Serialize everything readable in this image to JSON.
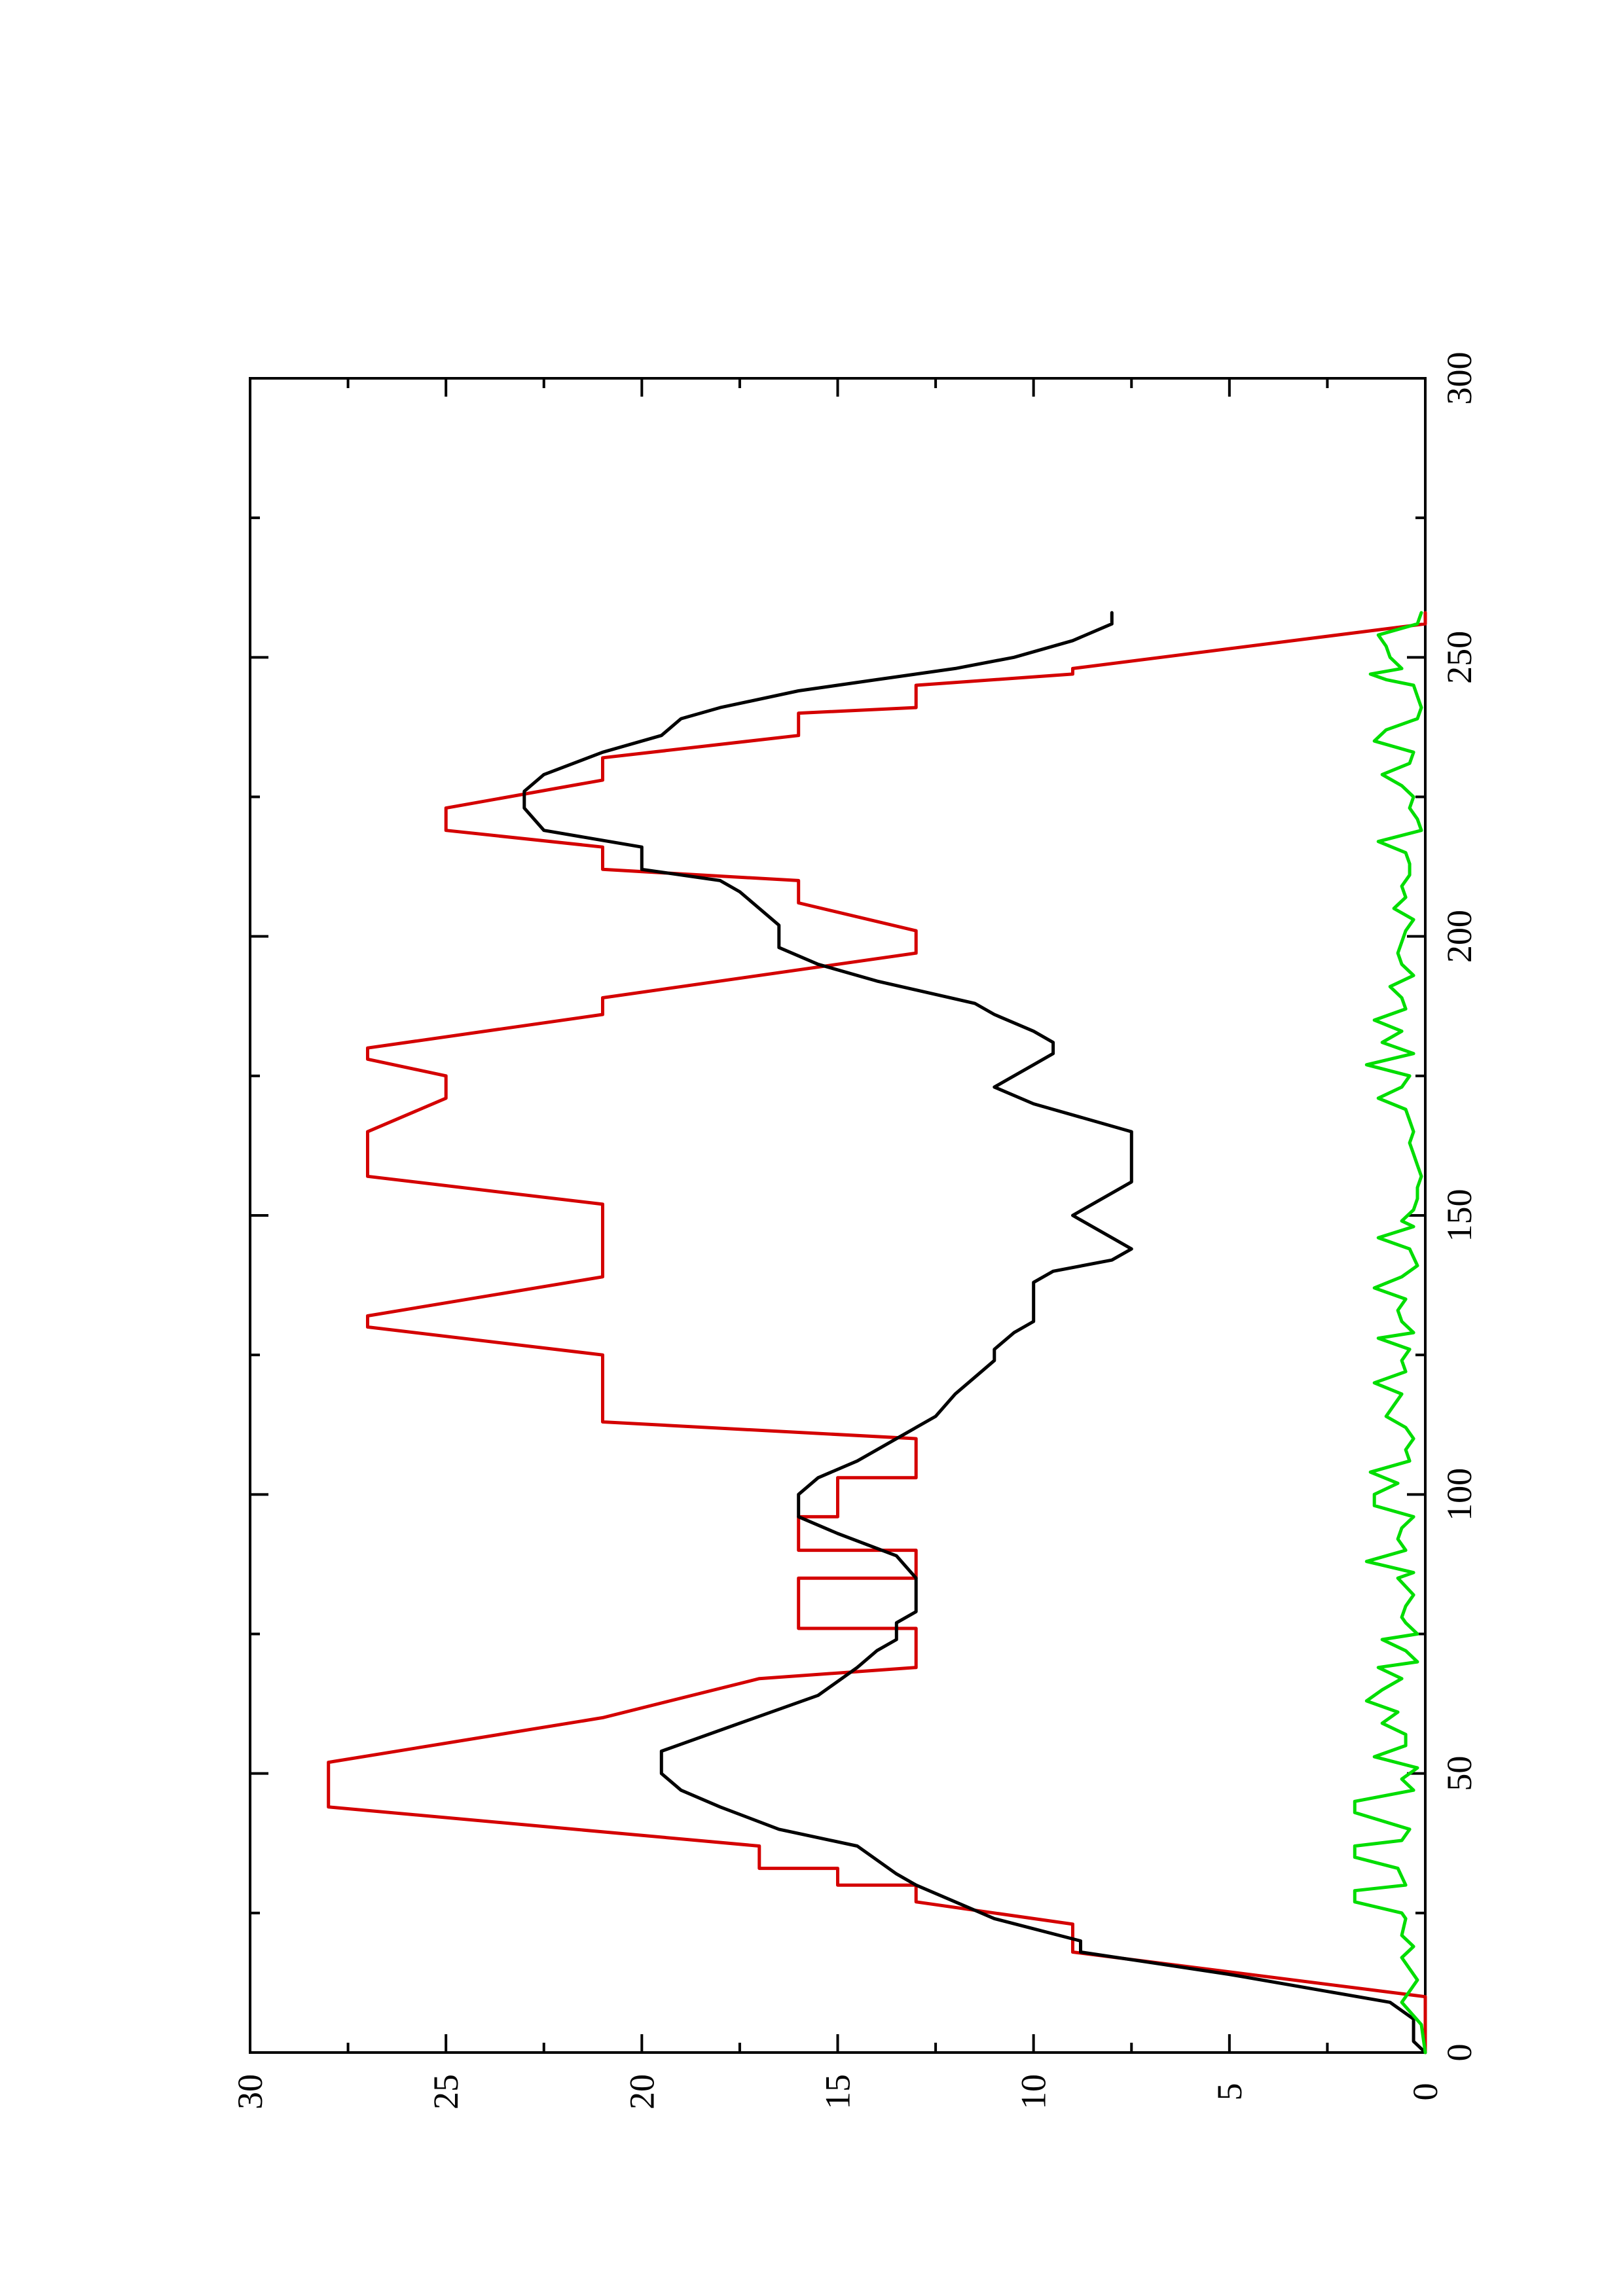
{
  "chart_data": {
    "type": "line",
    "orientation": "rotated-90-ccw",
    "title": "",
    "xlabel": "",
    "ylabel": "",
    "xlim": [
      0,
      300
    ],
    "ylim": [
      0,
      30
    ],
    "x_ticks": [
      0,
      50,
      100,
      150,
      200,
      250,
      300
    ],
    "x_tick_labels": [
      "0",
      "50",
      "100",
      "150",
      "200",
      "250",
      "300"
    ],
    "y_ticks": [
      0,
      5,
      10,
      15,
      20,
      25,
      30
    ],
    "y_tick_labels": [
      "0",
      "5",
      "10",
      "15",
      "20",
      "25",
      "30"
    ],
    "grid": false,
    "legend": "none",
    "series": [
      {
        "color": "#d40000",
        "points": [
          [
            0,
            0
          ],
          [
            10,
            0
          ],
          [
            18,
            9
          ],
          [
            23,
            9
          ],
          [
            27,
            13
          ],
          [
            30,
            13
          ],
          [
            30,
            15
          ],
          [
            33,
            15
          ],
          [
            33,
            17
          ],
          [
            37,
            17
          ],
          [
            44,
            28
          ],
          [
            52,
            28
          ],
          [
            60,
            21
          ],
          [
            67,
            17
          ],
          [
            69,
            13
          ],
          [
            76,
            13
          ],
          [
            76,
            16
          ],
          [
            85,
            16
          ],
          [
            85,
            13
          ],
          [
            90,
            13
          ],
          [
            90,
            16
          ],
          [
            96,
            16
          ],
          [
            96,
            15
          ],
          [
            103,
            15
          ],
          [
            103,
            13
          ],
          [
            110,
            13
          ],
          [
            113,
            21
          ],
          [
            125,
            21
          ],
          [
            130,
            27
          ],
          [
            132,
            27
          ],
          [
            139,
            21
          ],
          [
            152,
            21
          ],
          [
            157,
            27
          ],
          [
            165,
            27
          ],
          [
            171,
            25
          ],
          [
            175,
            25
          ],
          [
            178,
            27
          ],
          [
            180,
            27
          ],
          [
            186,
            21
          ],
          [
            189,
            21
          ],
          [
            197,
            13
          ],
          [
            201,
            13
          ],
          [
            206,
            16
          ],
          [
            210,
            16
          ],
          [
            212,
            21
          ],
          [
            216,
            21
          ],
          [
            219,
            25
          ],
          [
            223,
            25
          ],
          [
            228,
            21
          ],
          [
            232,
            21
          ],
          [
            236,
            16
          ],
          [
            240,
            16
          ],
          [
            241,
            13
          ],
          [
            245,
            13
          ],
          [
            247,
            9
          ],
          [
            248,
            9
          ],
          [
            256,
            0
          ],
          [
            258,
            0
          ]
        ]
      },
      {
        "color": "#000000",
        "points": [
          [
            0,
            0
          ],
          [
            2,
            0.3
          ],
          [
            6,
            0.3
          ],
          [
            9,
            0.9
          ],
          [
            14,
            5
          ],
          [
            18,
            8.8
          ],
          [
            20,
            8.8
          ],
          [
            24,
            11
          ],
          [
            27,
            12
          ],
          [
            30,
            13
          ],
          [
            32,
            13.5
          ],
          [
            37,
            14.5
          ],
          [
            40,
            16.5
          ],
          [
            44,
            18
          ],
          [
            47,
            19
          ],
          [
            50,
            19.5
          ],
          [
            54,
            19.5
          ],
          [
            59,
            17.5
          ],
          [
            64,
            15.5
          ],
          [
            69,
            14.5
          ],
          [
            72,
            14
          ],
          [
            74,
            13.5
          ],
          [
            77,
            13.5
          ],
          [
            79,
            13
          ],
          [
            85,
            13
          ],
          [
            89,
            13.5
          ],
          [
            93,
            15
          ],
          [
            96,
            16
          ],
          [
            100,
            16
          ],
          [
            103,
            15.5
          ],
          [
            106,
            14.5
          ],
          [
            110,
            13.5
          ],
          [
            114,
            12.5
          ],
          [
            118,
            12
          ],
          [
            121,
            11.5
          ],
          [
            124,
            11
          ],
          [
            126,
            11
          ],
          [
            129,
            10.5
          ],
          [
            131,
            10
          ],
          [
            135,
            10
          ],
          [
            138,
            10
          ],
          [
            140,
            9.5
          ],
          [
            142,
            8
          ],
          [
            144,
            7.5
          ],
          [
            146,
            8
          ],
          [
            148,
            8.5
          ],
          [
            150,
            9
          ],
          [
            152,
            8.5
          ],
          [
            156,
            7.5
          ],
          [
            160,
            7.5
          ],
          [
            163,
            7.5
          ],
          [
            165,
            7.5
          ],
          [
            170,
            10
          ],
          [
            173,
            11
          ],
          [
            177,
            10
          ],
          [
            179,
            9.5
          ],
          [
            181,
            9.5
          ],
          [
            183,
            10
          ],
          [
            186,
            11
          ],
          [
            188,
            11.5
          ],
          [
            192,
            14
          ],
          [
            195,
            15.5
          ],
          [
            198,
            16.5
          ],
          [
            200,
            16.5
          ],
          [
            202,
            16.5
          ],
          [
            205,
            17
          ],
          [
            208,
            17.5
          ],
          [
            210,
            18
          ],
          [
            212,
            20
          ],
          [
            216,
            20
          ],
          [
            219,
            22.5
          ],
          [
            223,
            23
          ],
          [
            226,
            23
          ],
          [
            229,
            22.5
          ],
          [
            233,
            21
          ],
          [
            236,
            19.5
          ],
          [
            239,
            19
          ],
          [
            241,
            18
          ],
          [
            244,
            16
          ],
          [
            246,
            14
          ],
          [
            248,
            12
          ],
          [
            250,
            10.5
          ],
          [
            253,
            9
          ],
          [
            256,
            8
          ],
          [
            258,
            8
          ]
        ]
      },
      {
        "color": "#00dd00",
        "points": [
          [
            0,
            0
          ],
          [
            5,
            0.1
          ],
          [
            9,
            0.6
          ],
          [
            13,
            0.2
          ],
          [
            17,
            0.6
          ],
          [
            19,
            0.3
          ],
          [
            21,
            0.6
          ],
          [
            24,
            0.5
          ],
          [
            25,
            0.6
          ],
          [
            27,
            1.8
          ],
          [
            29,
            1.8
          ],
          [
            30,
            0.5
          ],
          [
            33,
            0.7
          ],
          [
            35,
            1.8
          ],
          [
            37,
            1.8
          ],
          [
            38,
            0.6
          ],
          [
            40,
            0.4
          ],
          [
            43,
            1.8
          ],
          [
            45,
            1.8
          ],
          [
            47,
            0.3
          ],
          [
            49,
            0.6
          ],
          [
            51,
            0.2
          ],
          [
            53,
            1.3
          ],
          [
            55,
            0.5
          ],
          [
            57,
            0.5
          ],
          [
            59,
            1.1
          ],
          [
            61,
            0.7
          ],
          [
            63,
            1.5
          ],
          [
            65,
            1.1
          ],
          [
            67,
            0.6
          ],
          [
            69,
            1.2
          ],
          [
            70,
            0.2
          ],
          [
            72,
            0.5
          ],
          [
            74,
            1.1
          ],
          [
            75,
            0.2
          ],
          [
            77,
            0.5
          ],
          [
            78,
            0.6
          ],
          [
            80,
            0.5
          ],
          [
            82,
            0.3
          ],
          [
            85,
            0.7
          ],
          [
            86,
            0.3
          ],
          [
            88,
            1.5
          ],
          [
            90,
            0.5
          ],
          [
            92,
            0.7
          ],
          [
            94,
            0.6
          ],
          [
            96,
            0.3
          ],
          [
            98,
            1.3
          ],
          [
            100,
            1.3
          ],
          [
            102,
            0.7
          ],
          [
            104,
            1.4
          ],
          [
            106,
            0.4
          ],
          [
            108,
            0.5
          ],
          [
            110,
            0.3
          ],
          [
            112,
            0.5
          ],
          [
            114,
            1
          ],
          [
            116,
            0.8
          ],
          [
            118,
            0.6
          ],
          [
            120,
            1.3
          ],
          [
            122,
            0.5
          ],
          [
            124,
            0.6
          ],
          [
            126,
            0.4
          ],
          [
            128,
            1.2
          ],
          [
            129,
            0.3
          ],
          [
            131,
            0.6
          ],
          [
            133,
            0.7
          ],
          [
            135,
            0.5
          ],
          [
            137,
            1.3
          ],
          [
            139,
            0.6
          ],
          [
            141,
            0.2
          ],
          [
            144,
            0.4
          ],
          [
            146,
            1.2
          ],
          [
            148,
            0.3
          ],
          [
            149,
            0.6
          ],
          [
            151,
            0.3
          ],
          [
            153,
            0.2
          ],
          [
            155,
            0.2
          ],
          [
            157,
            0.1
          ],
          [
            159,
            0.2
          ],
          [
            161,
            0.3
          ],
          [
            163,
            0.4
          ],
          [
            165,
            0.3
          ],
          [
            167,
            0.4
          ],
          [
            169,
            0.5
          ],
          [
            171,
            1.2
          ],
          [
            173,
            0.6
          ],
          [
            175,
            0.4
          ],
          [
            177,
            1.5
          ],
          [
            179,
            0.3
          ],
          [
            181,
            1.1
          ],
          [
            183,
            0.6
          ],
          [
            185,
            1.3
          ],
          [
            187,
            0.5
          ],
          [
            189,
            0.6
          ],
          [
            191,
            0.9
          ],
          [
            193,
            0.3
          ],
          [
            195,
            0.6
          ],
          [
            197,
            0.7
          ],
          [
            199,
            0.6
          ],
          [
            201,
            0.5
          ],
          [
            203,
            0.3
          ],
          [
            205,
            0.8
          ],
          [
            207,
            0.5
          ],
          [
            209,
            0.6
          ],
          [
            211,
            0.4
          ],
          [
            213,
            0.4
          ],
          [
            215,
            0.5
          ],
          [
            217,
            1.2
          ],
          [
            219,
            0.1
          ],
          [
            221,
            0.2
          ],
          [
            223,
            0.4
          ],
          [
            225,
            0.3
          ],
          [
            227,
            0.6
          ],
          [
            229,
            1.1
          ],
          [
            231,
            0.4
          ],
          [
            233,
            0.3
          ],
          [
            235,
            1.3
          ],
          [
            237,
            1
          ],
          [
            239,
            0.2
          ],
          [
            241,
            0.1
          ],
          [
            243,
            0.2
          ],
          [
            245,
            0.3
          ],
          [
            246,
            1
          ],
          [
            247,
            1.4
          ],
          [
            248,
            0.6
          ],
          [
            250,
            0.9
          ],
          [
            252,
            1
          ],
          [
            254,
            1.2
          ],
          [
            256,
            0.2
          ],
          [
            258,
            0.1
          ]
        ]
      }
    ]
  }
}
